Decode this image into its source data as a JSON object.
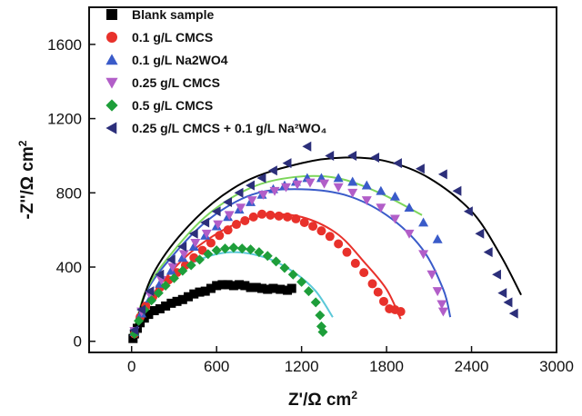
{
  "chart_data": {
    "type": "scatter",
    "title": "",
    "xlabel": "Z'/Ω cm²",
    "ylabel": "-Z''/Ω cm²",
    "xlabel_main": "Z'/Ω cm",
    "xlabel_sup": "2",
    "ylabel_main": "-Z''/Ω cm",
    "ylabel_sup": "2",
    "xlim": [
      -300,
      3000
    ],
    "ylim": [
      -60,
      1800
    ],
    "xticks": [
      0,
      600,
      1200,
      1800,
      2400,
      3000
    ],
    "yticks": [
      0,
      400,
      800,
      1200,
      1600
    ],
    "grid": false,
    "legend_position": "top-left",
    "series": [
      {
        "name": "Blank sample",
        "marker": "square",
        "color": "#000000",
        "fit_color": "#000000",
        "points": [
          [
            10,
            15
          ],
          [
            20,
            40
          ],
          [
            40,
            70
          ],
          [
            60,
            100
          ],
          [
            90,
            125
          ],
          [
            120,
            145
          ],
          [
            160,
            165
          ],
          [
            200,
            175
          ],
          [
            240,
            190
          ],
          [
            280,
            205
          ],
          [
            320,
            215
          ],
          [
            360,
            225
          ],
          [
            400,
            240
          ],
          [
            440,
            255
          ],
          [
            480,
            265
          ],
          [
            520,
            270
          ],
          [
            560,
            285
          ],
          [
            600,
            300
          ],
          [
            640,
            305
          ],
          [
            680,
            305
          ],
          [
            720,
            300
          ],
          [
            760,
            305
          ],
          [
            800,
            300
          ],
          [
            840,
            290
          ],
          [
            880,
            290
          ],
          [
            920,
            285
          ],
          [
            960,
            280
          ],
          [
            1000,
            285
          ],
          [
            1050,
            280
          ],
          [
            1100,
            275
          ],
          [
            1130,
            285
          ]
        ],
        "fit": [
          [
            0,
            0
          ],
          [
            60,
            90
          ],
          [
            150,
            160
          ],
          [
            300,
            225
          ],
          [
            500,
            275
          ],
          [
            700,
            300
          ],
          [
            900,
            300
          ],
          [
            1000,
            285
          ],
          [
            1100,
            255
          ]
        ]
      },
      {
        "name": "0.1 g/L CMCS",
        "marker": "circle",
        "color": "#e8312b",
        "fit_color": "#e8312b",
        "points": [
          [
            20,
            40
          ],
          [
            60,
            130
          ],
          [
            100,
            190
          ],
          [
            150,
            240
          ],
          [
            200,
            290
          ],
          [
            260,
            330
          ],
          [
            320,
            370
          ],
          [
            380,
            410
          ],
          [
            440,
            450
          ],
          [
            500,
            490
          ],
          [
            560,
            530
          ],
          [
            620,
            570
          ],
          [
            680,
            600
          ],
          [
            740,
            630
          ],
          [
            800,
            650
          ],
          [
            860,
            670
          ],
          [
            920,
            685
          ],
          [
            980,
            680
          ],
          [
            1040,
            675
          ],
          [
            1100,
            670
          ],
          [
            1160,
            660
          ],
          [
            1220,
            640
          ],
          [
            1280,
            620
          ],
          [
            1340,
            595
          ],
          [
            1400,
            565
          ],
          [
            1460,
            525
          ],
          [
            1520,
            480
          ],
          [
            1580,
            420
          ],
          [
            1640,
            370
          ],
          [
            1700,
            310
          ],
          [
            1740,
            265
          ],
          [
            1780,
            215
          ],
          [
            1820,
            175
          ],
          [
            1860,
            170
          ],
          [
            1900,
            160
          ]
        ],
        "fit": [
          [
            0,
            0
          ],
          [
            80,
            170
          ],
          [
            250,
            350
          ],
          [
            450,
            500
          ],
          [
            700,
            620
          ],
          [
            950,
            680
          ],
          [
            1200,
            670
          ],
          [
            1450,
            580
          ],
          [
            1650,
            420
          ],
          [
            1800,
            280
          ],
          [
            1900,
            120
          ]
        ]
      },
      {
        "name": "0.1 g/L Na2WO4",
        "marker": "triangle-up",
        "color": "#3a5bc9",
        "fit_color": "#3a5bc9",
        "points": [
          [
            20,
            50
          ],
          [
            70,
            150
          ],
          [
            130,
            230
          ],
          [
            200,
            310
          ],
          [
            280,
            380
          ],
          [
            360,
            450
          ],
          [
            440,
            510
          ],
          [
            520,
            570
          ],
          [
            600,
            620
          ],
          [
            680,
            670
          ],
          [
            760,
            710
          ],
          [
            840,
            750
          ],
          [
            920,
            790
          ],
          [
            1000,
            820
          ],
          [
            1080,
            840
          ],
          [
            1160,
            860
          ],
          [
            1240,
            880
          ],
          [
            1340,
            880
          ],
          [
            1460,
            880
          ],
          [
            1560,
            860
          ],
          [
            1660,
            840
          ],
          [
            1760,
            810
          ],
          [
            1860,
            780
          ],
          [
            1960,
            720
          ],
          [
            2060,
            640
          ],
          [
            2160,
            550
          ]
        ],
        "fit": [
          [
            0,
            0
          ],
          [
            100,
            260
          ],
          [
            300,
            470
          ],
          [
            550,
            660
          ],
          [
            850,
            790
          ],
          [
            1150,
            820
          ],
          [
            1500,
            790
          ],
          [
            1800,
            680
          ],
          [
            2050,
            500
          ],
          [
            2200,
            280
          ],
          [
            2250,
            130
          ]
        ]
      },
      {
        "name": "0.25 g/L CMCS",
        "marker": "triangle-down",
        "color": "#b25ec8",
        "fit_color": "#7cd65a",
        "points": [
          [
            20,
            55
          ],
          [
            70,
            160
          ],
          [
            130,
            250
          ],
          [
            210,
            330
          ],
          [
            290,
            400
          ],
          [
            370,
            470
          ],
          [
            450,
            530
          ],
          [
            530,
            580
          ],
          [
            610,
            630
          ],
          [
            690,
            680
          ],
          [
            770,
            720
          ],
          [
            850,
            760
          ],
          [
            930,
            790
          ],
          [
            1010,
            810
          ],
          [
            1090,
            830
          ],
          [
            1170,
            845
          ],
          [
            1260,
            855
          ],
          [
            1360,
            850
          ],
          [
            1460,
            830
          ],
          [
            1560,
            800
          ],
          [
            1660,
            760
          ],
          [
            1760,
            720
          ],
          [
            1860,
            660
          ],
          [
            1960,
            580
          ],
          [
            2060,
            470
          ],
          [
            2120,
            360
          ],
          [
            2160,
            270
          ],
          [
            2190,
            200
          ],
          [
            2200,
            160
          ]
        ],
        "fit": [
          [
            0,
            0
          ],
          [
            100,
            270
          ],
          [
            300,
            490
          ],
          [
            550,
            690
          ],
          [
            850,
            830
          ],
          [
            1150,
            885
          ],
          [
            1450,
            880
          ],
          [
            1750,
            800
          ],
          [
            2050,
            680
          ]
        ]
      },
      {
        "name": "0.5 g/L CMCS",
        "marker": "diamond",
        "color": "#1e9e3a",
        "fit_color": "#5bc8d8",
        "points": [
          [
            20,
            40
          ],
          [
            50,
            110
          ],
          [
            90,
            170
          ],
          [
            140,
            220
          ],
          [
            190,
            260
          ],
          [
            240,
            300
          ],
          [
            300,
            340
          ],
          [
            360,
            380
          ],
          [
            420,
            410
          ],
          [
            480,
            440
          ],
          [
            540,
            470
          ],
          [
            600,
            490
          ],
          [
            660,
            500
          ],
          [
            720,
            505
          ],
          [
            780,
            500
          ],
          [
            840,
            495
          ],
          [
            900,
            480
          ],
          [
            960,
            460
          ],
          [
            1020,
            430
          ],
          [
            1080,
            395
          ],
          [
            1140,
            360
          ],
          [
            1200,
            320
          ],
          [
            1250,
            270
          ],
          [
            1300,
            210
          ],
          [
            1330,
            140
          ],
          [
            1340,
            80
          ],
          [
            1350,
            50
          ]
        ],
        "fit": [
          [
            0,
            0
          ],
          [
            80,
            160
          ],
          [
            250,
            320
          ],
          [
            450,
            430
          ],
          [
            700,
            480
          ],
          [
            950,
            450
          ],
          [
            1150,
            370
          ],
          [
            1300,
            270
          ],
          [
            1420,
            130
          ]
        ]
      },
      {
        "name": "0.25 g/L CMCS + 0.1 g/L Na²WO₄",
        "marker": "triangle-left",
        "color": "#2c2f7a",
        "fit_color": "#000000",
        "points": [
          [
            20,
            60
          ],
          [
            70,
            170
          ],
          [
            130,
            270
          ],
          [
            200,
            360
          ],
          [
            280,
            440
          ],
          [
            360,
            510
          ],
          [
            440,
            580
          ],
          [
            520,
            640
          ],
          [
            600,
            700
          ],
          [
            680,
            750
          ],
          [
            760,
            800
          ],
          [
            840,
            840
          ],
          [
            920,
            880
          ],
          [
            1000,
            920
          ],
          [
            1100,
            960
          ],
          [
            1240,
            1050
          ],
          [
            1400,
            1000
          ],
          [
            1560,
            1000
          ],
          [
            1720,
            990
          ],
          [
            1880,
            960
          ],
          [
            2040,
            930
          ],
          [
            2200,
            900
          ],
          [
            2300,
            810
          ],
          [
            2380,
            700
          ],
          [
            2460,
            580
          ],
          [
            2520,
            480
          ],
          [
            2580,
            360
          ],
          [
            2620,
            260
          ],
          [
            2660,
            210
          ],
          [
            2700,
            150
          ]
        ],
        "fit": [
          [
            0,
            0
          ],
          [
            150,
            360
          ],
          [
            450,
            660
          ],
          [
            800,
            860
          ],
          [
            1200,
            960
          ],
          [
            1500,
            990
          ],
          [
            1800,
            970
          ],
          [
            2100,
            880
          ],
          [
            2400,
            700
          ],
          [
            2600,
            470
          ],
          [
            2750,
            250
          ]
        ]
      }
    ]
  }
}
